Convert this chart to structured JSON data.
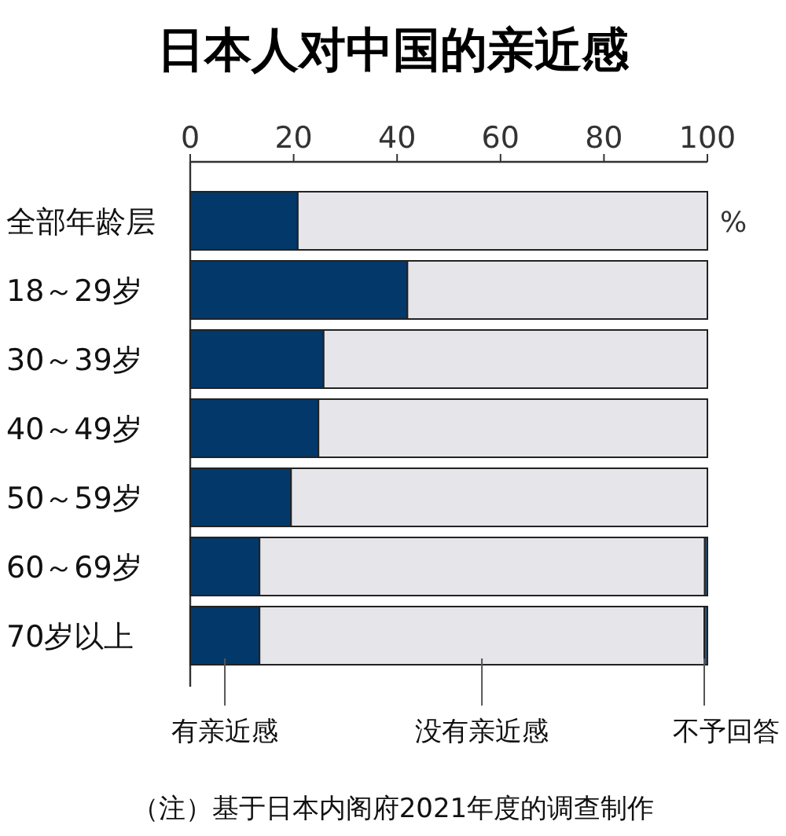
{
  "chart_data": {
    "type": "bar",
    "orientation": "horizontal",
    "stacked": true,
    "title": "日本人对中国的亲近感",
    "categories": [
      "全部年龄层",
      "18～29岁",
      "30～39岁",
      "40～49岁",
      "50～59岁",
      "60～69岁",
      "70岁以上"
    ],
    "series": [
      {
        "name": "有亲近感",
        "color": "#03386a",
        "values": [
          20.8,
          42.0,
          25.8,
          24.8,
          19.5,
          13.4,
          13.4
        ]
      },
      {
        "name": "没有亲近感",
        "color": "#e6e6ea",
        "values": [
          79.2,
          58.0,
          74.2,
          75.2,
          80.5,
          86.1,
          86.0
        ]
      },
      {
        "name": "不予回答",
        "color": "#2a5a8a",
        "values": [
          0,
          0,
          0,
          0,
          0,
          0.5,
          0.6
        ]
      }
    ],
    "xlim": [
      0,
      100
    ],
    "xticks": [
      0,
      20,
      40,
      60,
      80,
      100
    ],
    "xlabel": "%",
    "legend": "bottom",
    "annotations": [
      "（注）基于日本内阁府2021年度的调查制作"
    ]
  }
}
